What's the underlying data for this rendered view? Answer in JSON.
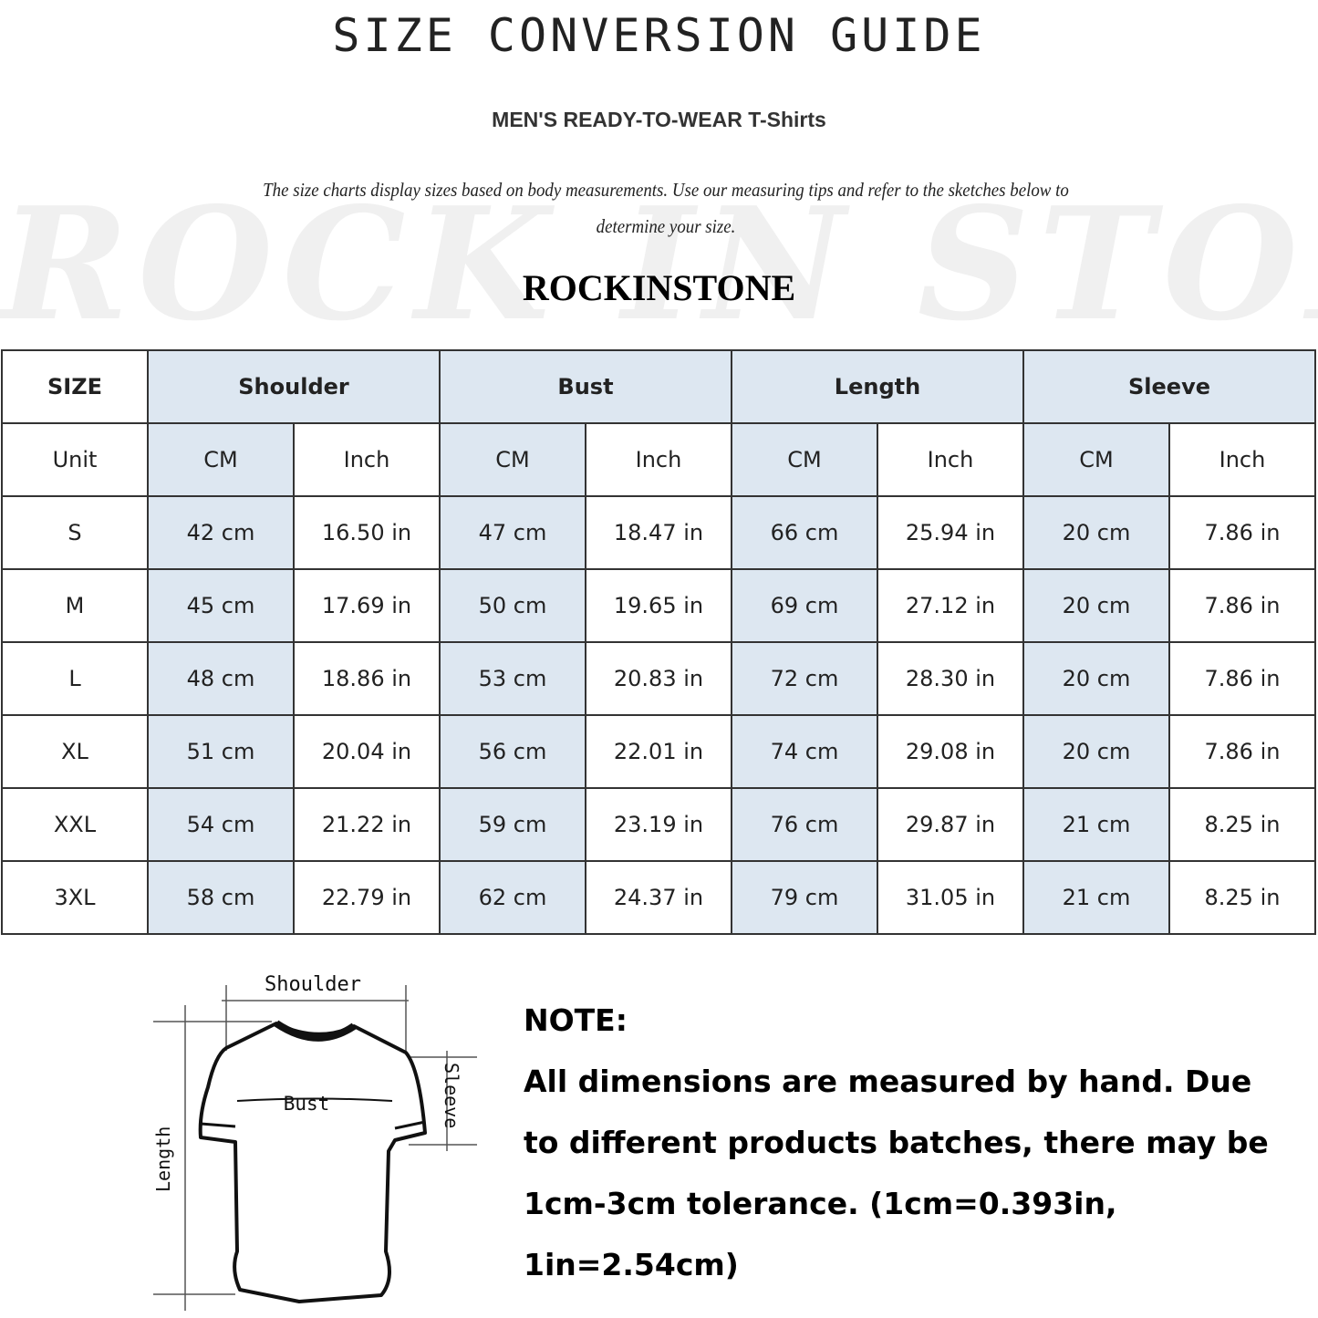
{
  "title": "SIZE CONVERSION GUIDE",
  "subtitle": "MEN'S READY-TO-WEAR T-Shirts",
  "description": "The size charts display sizes based on body measurements. Use our measuring tips and refer to the sketches below to determine your size.",
  "watermark": "ROCK IN STONE",
  "brand": "ROCKINSTONE",
  "table": {
    "header": [
      "SIZE",
      "Shoulder",
      "Bust",
      "Length",
      "Sleeve"
    ],
    "units": [
      "Unit",
      "CM",
      "Inch",
      "CM",
      "Inch",
      "CM",
      "Inch",
      "CM",
      "Inch"
    ],
    "rows": [
      [
        "S",
        "42 cm",
        "16.50 in",
        "47 cm",
        "18.47  in",
        "66 cm",
        "25.94  in",
        "20 cm",
        "7.86  in"
      ],
      [
        "M",
        "45 cm",
        "17.69  in",
        "50 cm",
        "19.65  in",
        "69 cm",
        "27.12  in",
        "20 cm",
        "7.86  in"
      ],
      [
        "L",
        "48 cm",
        "18.86  in",
        "53 cm",
        "20.83  in",
        "72 cm",
        "28.30  in",
        "20 cm",
        "7.86  in"
      ],
      [
        "XL",
        "51 cm",
        "20.04  in",
        "56 cm",
        "22.01  in",
        "74 cm",
        "29.08  in",
        "20 cm",
        "7.86  in"
      ],
      [
        "XXL",
        "54 cm",
        "21.22  in",
        "59 cm",
        "23.19  in",
        "76 cm",
        "29.87  in",
        "21 cm",
        "8.25  in"
      ],
      [
        "3XL",
        "58 cm",
        "22.79  in",
        "62 cm",
        "24.37  in",
        "79 cm",
        "31.05  in",
        "21 cm",
        "8.25  in"
      ]
    ],
    "highlight_color": "#dde7f1"
  },
  "sketch": {
    "shoulder": "Shoulder",
    "bust": "Bust",
    "sleeve": "Sleeve",
    "length": "Length"
  },
  "note": {
    "heading": "NOTE:",
    "text": "All dimensions are measured by hand. Due to different products batches, there may be 1cm-3cm tolerance. (1cm=0.393in, 1in=2.54cm)"
  }
}
